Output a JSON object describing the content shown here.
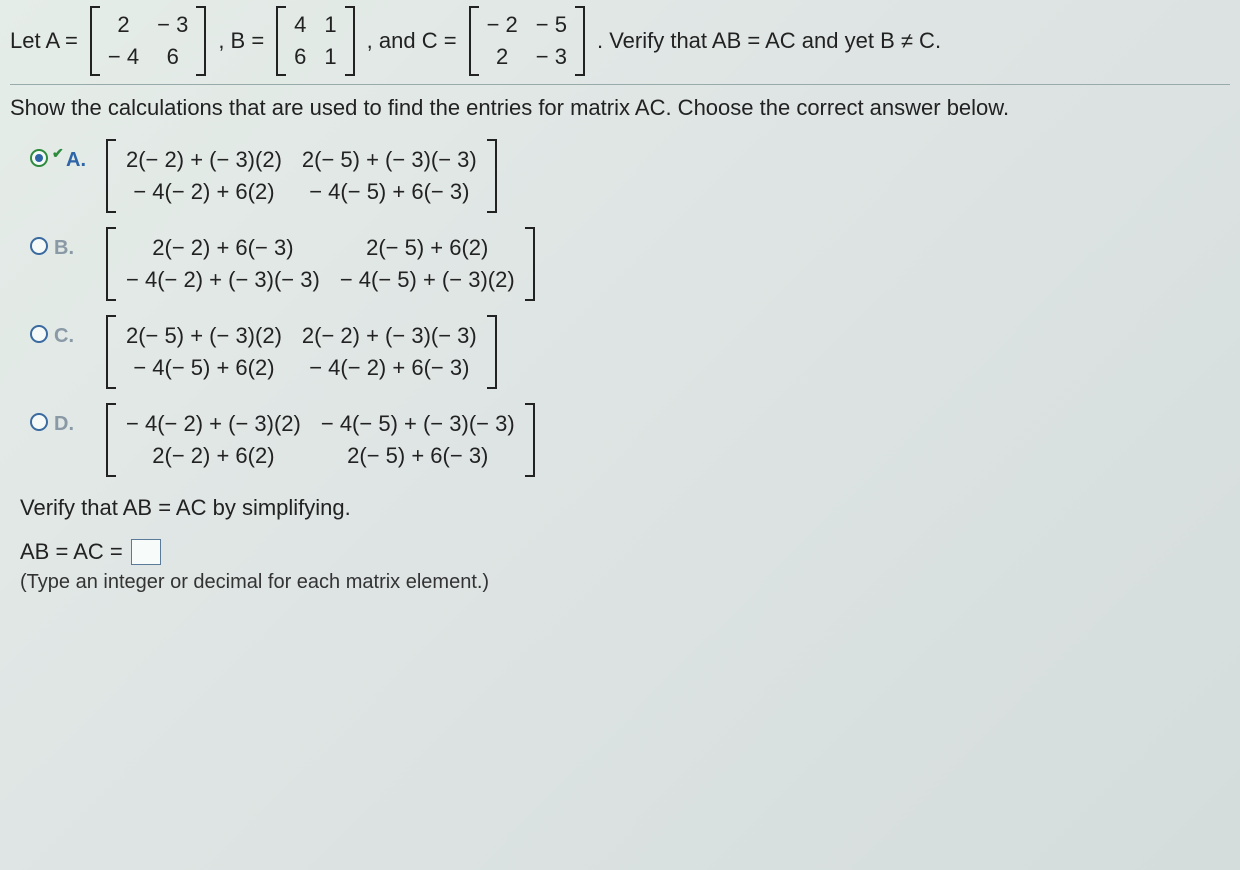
{
  "intro": {
    "letA": "Let A =",
    "commaB": ", B =",
    "andC": ", and C =",
    "verify": ". Verify that AB = AC and yet B ≠ C."
  },
  "matrices": {
    "A": [
      [
        "2",
        "− 3"
      ],
      [
        "− 4",
        "6"
      ]
    ],
    "B": [
      [
        "4",
        "1"
      ],
      [
        "6",
        "1"
      ]
    ],
    "C": [
      [
        "− 2",
        "− 5"
      ],
      [
        "2",
        "− 3"
      ]
    ]
  },
  "instruction": "Show the calculations that are used to find the entries for matrix AC. Choose the correct answer below.",
  "options": {
    "A": {
      "label": "A.",
      "rows": [
        [
          "2(− 2) + (− 3)(2)",
          "2(− 5) + (− 3)(− 3)"
        ],
        [
          "− 4(− 2) + 6(2)",
          "− 4(− 5) + 6(− 3)"
        ]
      ],
      "selected": true
    },
    "B": {
      "label": "B.",
      "rows": [
        [
          "2(− 2) + 6(− 3)",
          "2(− 5) + 6(2)"
        ],
        [
          "− 4(− 2) + (− 3)(− 3)",
          "− 4(− 5) + (− 3)(2)"
        ]
      ],
      "selected": false
    },
    "C": {
      "label": "C.",
      "rows": [
        [
          "2(− 5) + (− 3)(2)",
          "2(− 2) + (− 3)(− 3)"
        ],
        [
          "− 4(− 5) + 6(2)",
          "− 4(− 2) + 6(− 3)"
        ]
      ],
      "selected": false
    },
    "D": {
      "label": "D.",
      "rows": [
        [
          "− 4(− 2) + (− 3)(2)",
          "− 4(− 5) + (− 3)(− 3)"
        ],
        [
          "2(− 2) + 6(2)",
          "2(− 5) + 6(− 3)"
        ]
      ],
      "selected": false
    }
  },
  "verifyText": "Verify that AB = AC by simplifying.",
  "eq": "AB = AC =",
  "hint": "(Type an integer or decimal for each matrix element.)",
  "colors": {
    "text": "#222222",
    "link": "#3a6aa0",
    "selected": "#2d65a6",
    "correct": "#2e8b3e",
    "dim": "#8a99a6",
    "bg_gradient_start": "#e5ede8",
    "bg_gradient_end": "#d4dcdc",
    "input_border": "#5b7a99"
  },
  "fonts": {
    "body_pt": 16,
    "family": "Arial"
  }
}
